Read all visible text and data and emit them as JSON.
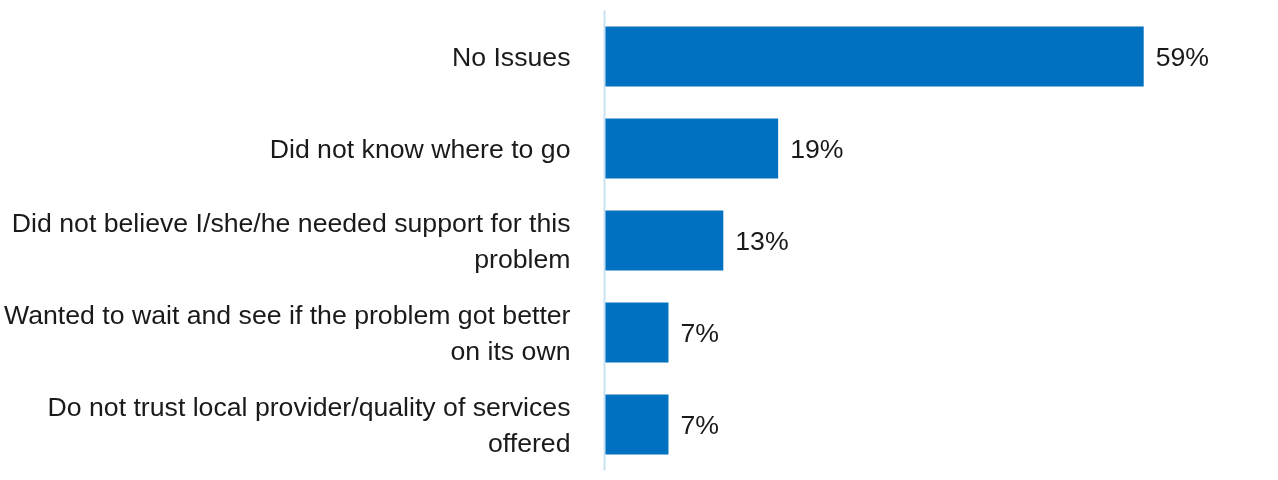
{
  "chart_data": {
    "type": "bar",
    "orientation": "horizontal",
    "categories": [
      "No Issues",
      "Did not know where to go",
      "Did not believe I/she/he needed support for this problem",
      "Wanted to wait and see if the problem got better on its own",
      "Do not trust local provider/quality of services offered"
    ],
    "values": [
      59,
      19,
      13,
      7,
      7
    ],
    "color": "#0070c0",
    "value_labels": [
      "59%",
      "19%",
      "13%",
      "7%",
      "7%"
    ],
    "grid": false,
    "tick_labels": "y"
  }
}
